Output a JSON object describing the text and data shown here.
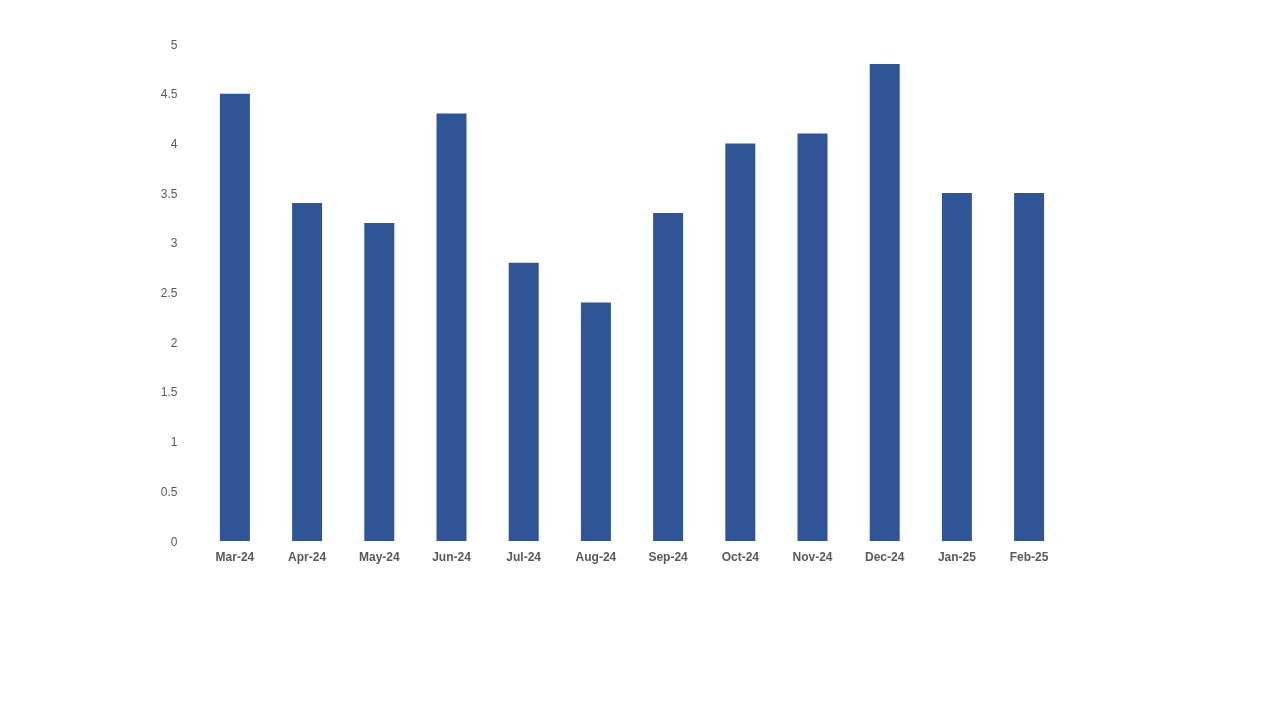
{
  "chart_data": {
    "type": "bar",
    "categories": [
      "Mar-24",
      "Apr-24",
      "May-24",
      "Jun-24",
      "Jul-24",
      "Aug-24",
      "Sep-24",
      "Oct-24",
      "Nov-24",
      "Dec-24",
      "Jan-25",
      "Feb-25"
    ],
    "values": [
      4.5,
      3.4,
      3.2,
      4.3,
      2.8,
      2.4,
      3.3,
      4.0,
      4.1,
      4.8,
      3.5,
      3.5
    ],
    "color": "#2f5597",
    "ylim": [
      0,
      5
    ],
    "yticks": [
      0,
      0.5,
      1,
      1.5,
      2,
      2.5,
      3,
      3.5,
      4,
      4.5,
      5
    ],
    "grid": false
  }
}
